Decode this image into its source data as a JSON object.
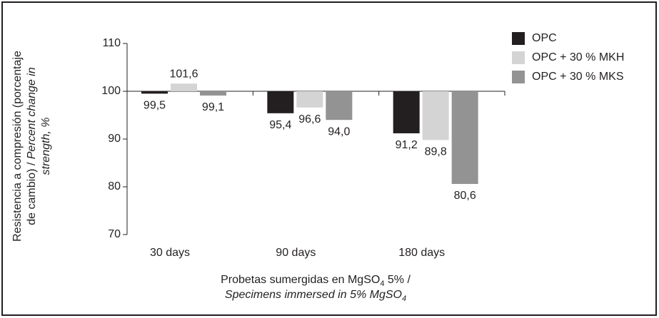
{
  "chart_data": {
    "type": "bar",
    "y_label": {
      "line1": "Resistencia a compresión (porcentaje",
      "line2a": "de cambio) /",
      "line2b": "Percent change in",
      "line3": "strength, %"
    },
    "x_label": {
      "line1": [
        "Probetas sumergidas en MgSO",
        "4",
        " 5% /"
      ],
      "line2": [
        "Specimens immersed in 5% MgSO",
        "4"
      ]
    },
    "categories": [
      "30 days",
      "90 days",
      "180 days"
    ],
    "baseline": 100,
    "series": [
      {
        "name": "OPC",
        "color": "#231f20",
        "values": [
          99.5,
          95.4,
          91.2
        ],
        "value_labels": [
          "99,5",
          "95,4",
          "91,2"
        ]
      },
      {
        "name": "OPC + 30 % MKH",
        "color": "#d4d4d4",
        "values": [
          101.6,
          96.6,
          89.8
        ],
        "value_labels": [
          "101,6",
          "96,6",
          "89,8"
        ]
      },
      {
        "name": "OPC + 30 % MKS",
        "color": "#939393",
        "values": [
          99.1,
          94.0,
          80.6
        ],
        "value_labels": [
          "99,1",
          "94,0",
          "80,6"
        ]
      }
    ],
    "ylim": [
      70,
      110
    ],
    "yticks": [
      70,
      80,
      90,
      100,
      110
    ],
    "legend": "right"
  }
}
